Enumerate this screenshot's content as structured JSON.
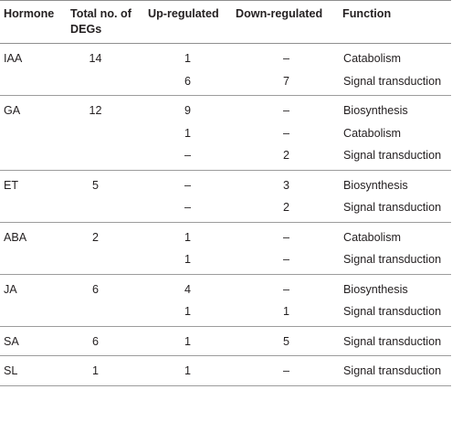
{
  "table": {
    "headers": {
      "hormone": "Hormone",
      "total": "Total no. of DEGs",
      "up": "Up-regulated",
      "down": "Down-regulated",
      "function": "Function"
    },
    "groups": [
      {
        "hormone": "IAA",
        "total": "14",
        "rows": [
          {
            "up": "1",
            "down": "–",
            "function": "Catabolism"
          },
          {
            "up": "6",
            "down": "7",
            "function": "Signal transduction"
          }
        ]
      },
      {
        "hormone": "GA",
        "total": "12",
        "rows": [
          {
            "up": "9",
            "down": "–",
            "function": "Biosynthesis"
          },
          {
            "up": "1",
            "down": "–",
            "function": "Catabolism"
          },
          {
            "up": "–",
            "down": "2",
            "function": "Signal transduction"
          }
        ]
      },
      {
        "hormone": "ET",
        "total": "5",
        "rows": [
          {
            "up": "–",
            "down": "3",
            "function": "Biosynthesis"
          },
          {
            "up": "–",
            "down": "2",
            "function": "Signal transduction"
          }
        ]
      },
      {
        "hormone": "ABA",
        "total": "2",
        "rows": [
          {
            "up": "1",
            "down": "–",
            "function": "Catabolism"
          },
          {
            "up": "1",
            "down": "–",
            "function": "Signal transduction"
          }
        ]
      },
      {
        "hormone": "JA",
        "total": "6",
        "rows": [
          {
            "up": "4",
            "down": "–",
            "function": "Biosynthesis"
          },
          {
            "up": "1",
            "down": "1",
            "function": "Signal transduction"
          }
        ]
      },
      {
        "hormone": "SA",
        "total": "6",
        "rows": [
          {
            "up": "1",
            "down": "5",
            "function": "Signal transduction"
          }
        ]
      },
      {
        "hormone": "SL",
        "total": "1",
        "rows": [
          {
            "up": "1",
            "down": "–",
            "function": "Signal transduction"
          }
        ]
      }
    ]
  }
}
